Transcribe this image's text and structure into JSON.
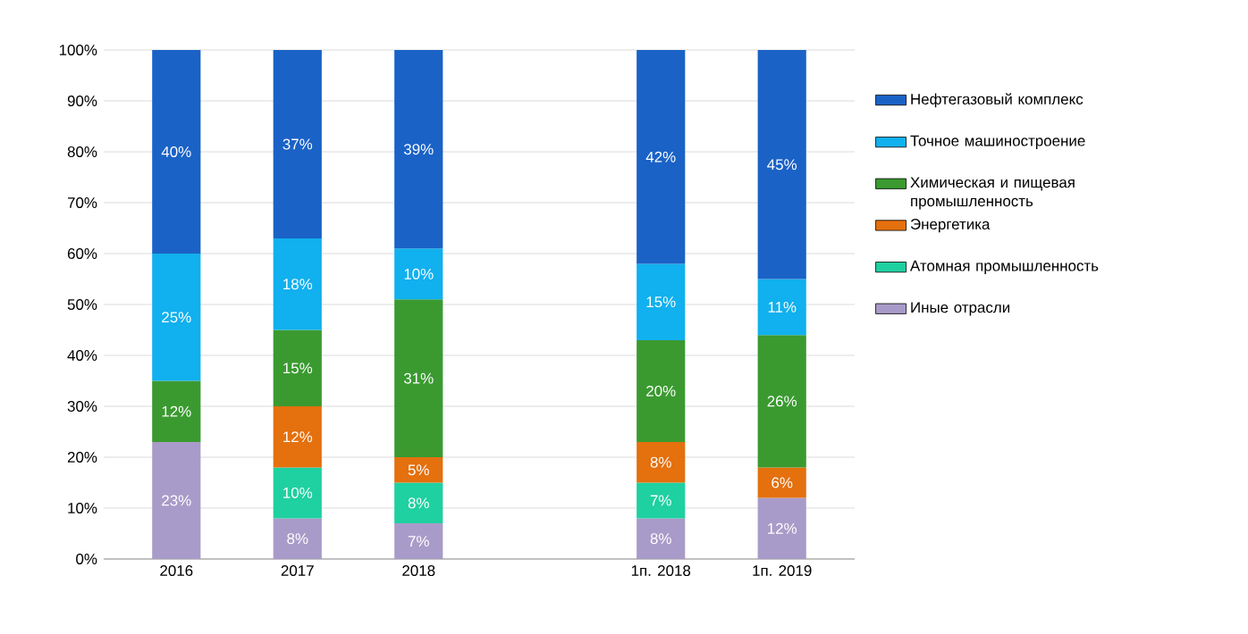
{
  "chart_data": {
    "type": "bar",
    "stacked": true,
    "categories": [
      "2016",
      "2017",
      "2018",
      null,
      "1п. 2018",
      "1п. 2019"
    ],
    "series": [
      {
        "name": "Иные отрасли",
        "color": "#a99bc9",
        "values": [
          23,
          8,
          7,
          null,
          8,
          12
        ],
        "value_labels": [
          "23%",
          "8%",
          "7%",
          null,
          "8%",
          "12%"
        ]
      },
      {
        "name": "Атомная промышленность",
        "color": "#1fd0a0",
        "values": [
          null,
          10,
          8,
          null,
          7,
          null
        ],
        "value_labels": [
          null,
          "10%",
          "8%",
          null,
          "7%",
          null
        ]
      },
      {
        "name": "Энергетика",
        "color": "#e4700e",
        "values": [
          null,
          12,
          5,
          null,
          8,
          6
        ],
        "value_labels": [
          null,
          "12%",
          "5%",
          null,
          "8%",
          "6%"
        ]
      },
      {
        "name": "Химическая и пищевая промышленность",
        "color": "#3a9a30",
        "values": [
          12,
          15,
          31,
          null,
          20,
          26
        ],
        "value_labels": [
          "12%",
          "15%",
          "31%",
          null,
          "20%",
          "26%"
        ]
      },
      {
        "name": "Точное машиностроение",
        "color": "#11b0ee",
        "values": [
          25,
          18,
          10,
          null,
          15,
          11
        ],
        "value_labels": [
          "25%",
          "18%",
          "10%",
          null,
          "15%",
          "11%"
        ]
      },
      {
        "name": "Нефтегазовый комплекс",
        "color": "#1a62c6",
        "values": [
          40,
          37,
          39,
          null,
          42,
          45
        ],
        "value_labels": [
          "40%",
          "37%",
          "39%",
          null,
          "42%",
          "45%"
        ]
      }
    ],
    "ylim": [
      0,
      100
    ],
    "yticks": [
      {
        "value": 0,
        "label": "0%"
      },
      {
        "value": 10,
        "label": "10%"
      },
      {
        "value": 20,
        "label": "20%"
      },
      {
        "value": 30,
        "label": "30%"
      },
      {
        "value": 40,
        "label": "40%"
      },
      {
        "value": 50,
        "label": "50%"
      },
      {
        "value": 60,
        "label": "60%"
      },
      {
        "value": 70,
        "label": "70%"
      },
      {
        "value": 80,
        "label": "80%"
      },
      {
        "value": 90,
        "label": "90%"
      },
      {
        "value": 100,
        "label": "100%"
      }
    ],
    "grid": "y",
    "legend": "right"
  }
}
